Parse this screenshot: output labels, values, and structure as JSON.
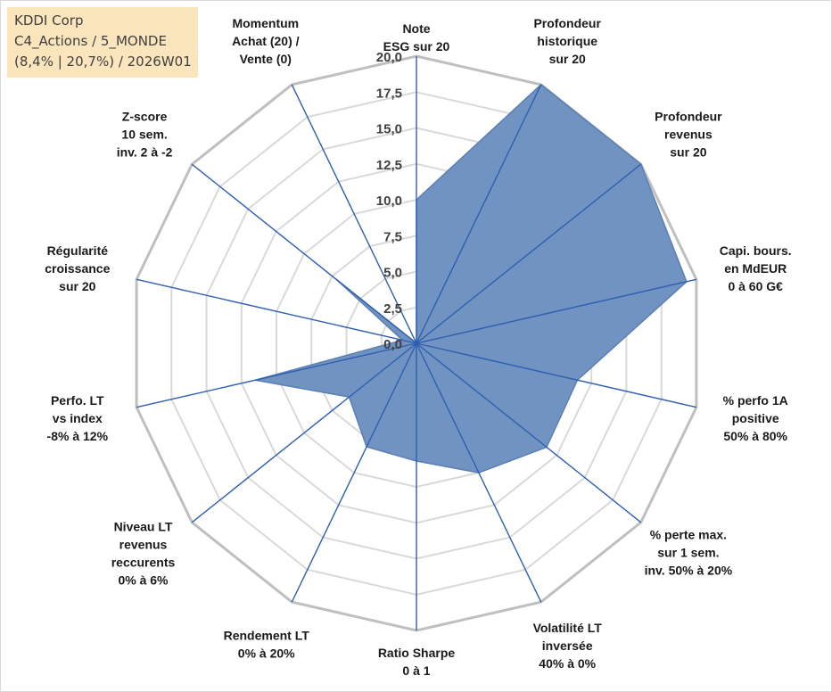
{
  "info_box": {
    "line1": "KDDI Corp",
    "line2": "C4_Actions / 5_MONDE",
    "line3": "(8,4% | 20,7%) / 2026W01"
  },
  "colors": {
    "fill": "#7093c1",
    "stroke": "#5b7fb3",
    "spoke": "#2f5fb0",
    "grid_outer": "#bfbfbf",
    "grid_inner": "#d9d9d9",
    "info_bg": "#fbe5bd"
  },
  "chart_data": {
    "type": "radar",
    "rmin": 0,
    "rmax": 20,
    "ticks": [
      "0,0",
      "2,5",
      "5,0",
      "7,5",
      "10,0",
      "12,5",
      "15,0",
      "17,5",
      "20,0"
    ],
    "axes": [
      {
        "label": [
          "Note",
          "ESG sur 20"
        ],
        "value": 10.0
      },
      {
        "label": [
          "Profondeur",
          "historique",
          "sur 20"
        ],
        "value": 20.0
      },
      {
        "label": [
          "Profondeur",
          "revenus",
          "sur 20"
        ],
        "value": 20.0
      },
      {
        "label": [
          "Capi. bours.",
          "en MdEUR",
          "0 à 60 G€"
        ],
        "value": 19.3
      },
      {
        "label": [
          "% perfo 1A",
          "positive",
          "50% à 80%"
        ],
        "value": 11.5
      },
      {
        "label": [
          "% perte max.",
          "sur 1 sem.",
          "inv. 50% à 20%"
        ],
        "value": 11.6
      },
      {
        "label": [
          "Volatilité LT",
          "inversée",
          "40% à 0%"
        ],
        "value": 10.0
      },
      {
        "label": [
          "Ratio Sharpe",
          "0 à 1"
        ],
        "value": 8.2
      },
      {
        "label": [
          "Rendement LT",
          "0% à 20%"
        ],
        "value": 8.0
      },
      {
        "label": [
          "Niveau LT",
          "revenus",
          "reccurents",
          "0% à 6%"
        ],
        "value": 6.0
      },
      {
        "label": [
          "Perfo. LT",
          "vs index",
          "-8% à 12%"
        ],
        "value": 11.5
      },
      {
        "label": [
          "Régularité",
          "croissance",
          "sur 20"
        ],
        "value": 1.0
      },
      {
        "label": [
          "Z-score",
          "10 sem.",
          "inv. 2 à -2"
        ],
        "value": 7.2
      },
      {
        "label": [
          "Momentum",
          "Achat (20) /",
          "Vente (0)"
        ],
        "value": 0.0
      }
    ]
  }
}
